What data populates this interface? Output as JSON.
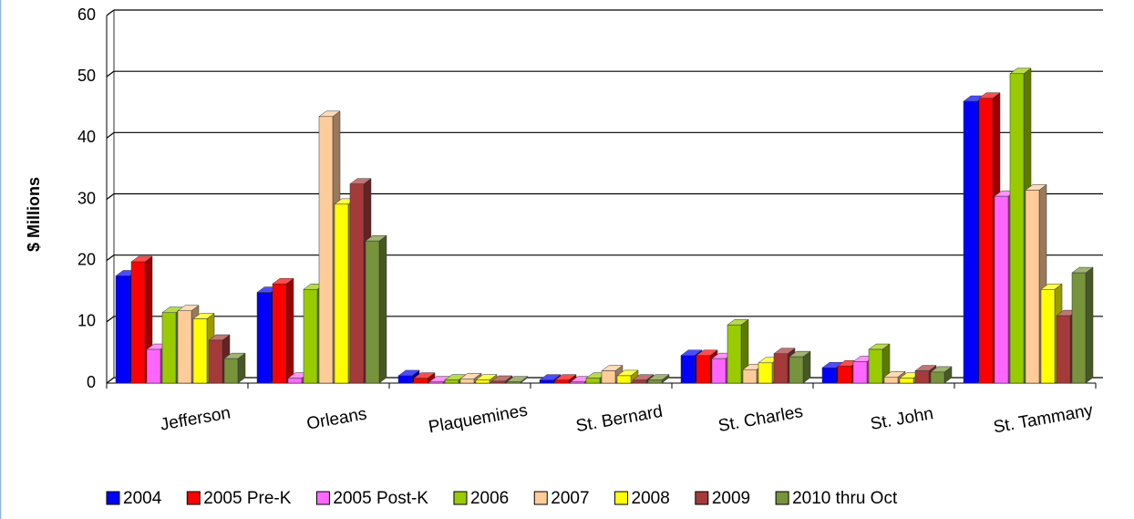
{
  "chart_data": {
    "type": "bar3d",
    "y_label": "$ Millions",
    "categories": [
      "Jefferson",
      "Orleans",
      "Plaquemines",
      "St. Bernard",
      "St. Charles",
      "St. John",
      "St. Tammany"
    ],
    "series": [
      {
        "name": "2004",
        "color": "#0000ff",
        "values": [
          17.5,
          14.8,
          1.2,
          0.5,
          4.5,
          2.5,
          46
        ]
      },
      {
        "name": "2005 Pre-K",
        "color": "#ff0000",
        "values": [
          19.8,
          16.2,
          0.8,
          0.5,
          4.5,
          2.8,
          46.5
        ]
      },
      {
        "name": "2005 Post-K",
        "color": "#ff66ff",
        "values": [
          5.5,
          0.8,
          0.2,
          0.2,
          4.0,
          3.5,
          30.5
        ]
      },
      {
        "name": "2006",
        "color": "#99cc00",
        "values": [
          11.5,
          15.3,
          0.5,
          0.8,
          9.5,
          5.5,
          50.5
        ]
      },
      {
        "name": "2007",
        "color": "#ffcc99",
        "values": [
          11.8,
          43.5,
          0.7,
          2.0,
          2.2,
          1.0,
          31.5
        ]
      },
      {
        "name": "2008",
        "color": "#ffff00",
        "values": [
          10.5,
          29.2,
          0.5,
          1.2,
          3.3,
          0.8,
          15.3
        ]
      },
      {
        "name": "2009",
        "color": "#a53a3a",
        "values": [
          7,
          32.5,
          0.3,
          0.5,
          4.8,
          2.0,
          11
        ]
      },
      {
        "name": "2010 thru Oct",
        "color": "#77933c",
        "values": [
          4,
          23.2,
          0.2,
          0.5,
          4.3,
          1.8,
          18
        ]
      }
    ],
    "ylim": [
      0,
      60
    ],
    "yticks": [
      0,
      10,
      20,
      30,
      40,
      50,
      60
    ],
    "grid": true,
    "legend": "bottom"
  }
}
